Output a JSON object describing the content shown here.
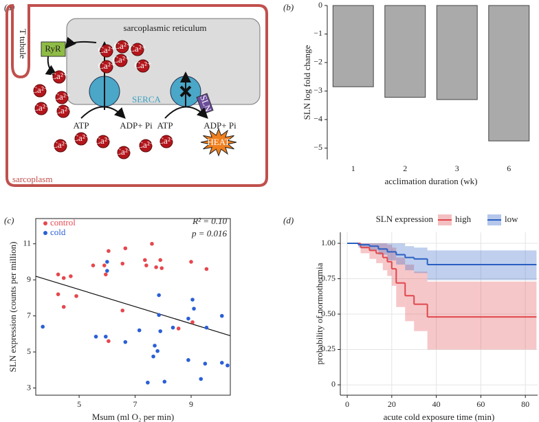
{
  "diagram": {
    "label": "(a)",
    "t_tubule": "T tubule",
    "sr": "sarcoplasmic reticulum",
    "ryr": "RyR",
    "serca": "SERCA",
    "sln": "SLN",
    "ion": "Ca²⁺",
    "atp": "ATP",
    "adp": "ADP+ Pi",
    "heat": "HEAT",
    "sarcoplasm": "sarcoplasm"
  },
  "chart_data": [
    {
      "type": "bar",
      "label": "(b)",
      "categories": [
        "1",
        "2",
        "3",
        "6"
      ],
      "values": [
        -2.85,
        -3.22,
        -3.3,
        -4.75
      ],
      "color": "#aaaaaa",
      "xlabel": "acclimation duration (wk)",
      "ylabel": "SLN log fold change",
      "ylim": [
        -5.4,
        0
      ],
      "yticks": [
        0,
        {
          "value": -1,
          "label": "−1"
        },
        {
          "value": -2,
          "label": "−2"
        },
        {
          "value": -3,
          "label": "−3"
        },
        {
          "value": -4,
          "label": "−4"
        },
        {
          "value": -5,
          "label": "−5"
        }
      ]
    },
    {
      "type": "scatter",
      "label": "(c)",
      "xlabel": "Msum (ml O₂ per min)",
      "ylabel": "SLN expression (counts per million)",
      "annotations": [
        "R² = 0.10",
        "p = 0.016"
      ],
      "xlim": [
        3.45,
        10.4
      ],
      "xticks": [
        5,
        7,
        9
      ],
      "ylim": [
        2.6,
        12.4
      ],
      "yticks": [
        3,
        5,
        7,
        9,
        11
      ],
      "series": [
        {
          "name": "control",
          "color": "#e5484e",
          "x": [
            4.25,
            4.25,
            4.45,
            4.45,
            4.7,
            4.9,
            5.5,
            5.9,
            5.95,
            6.05,
            6.05,
            6.55,
            6.65,
            6.55,
            7.35,
            7.4,
            7.6,
            7.75,
            7.9,
            7.95,
            8.55,
            9.0,
            9.05,
            9.55
          ],
          "values": [
            9.3,
            8.2,
            9.1,
            7.5,
            9.2,
            8.1,
            9.8,
            9.8,
            9.3,
            10.6,
            5.6,
            9.9,
            10.75,
            7.3,
            10.1,
            9.8,
            11.0,
            9.7,
            10.1,
            9.65,
            6.3,
            10.0,
            6.65,
            9.6
          ]
        },
        {
          "name": "cold",
          "color": "#2b5fd6",
          "x": [
            3.7,
            5.6,
            5.95,
            6.0,
            6.0,
            6.65,
            7.15,
            7.45,
            7.65,
            7.7,
            7.8,
            7.85,
            7.85,
            7.9,
            8.05,
            8.35,
            8.9,
            8.9,
            9.05,
            9.1,
            9.55,
            9.5,
            9.35,
            10.1,
            10.1,
            10.3
          ],
          "values": [
            6.4,
            5.85,
            5.85,
            10.0,
            9.5,
            5.55,
            6.2,
            3.3,
            4.75,
            5.35,
            5.05,
            8.15,
            7.05,
            6.15,
            3.35,
            6.35,
            6.85,
            4.55,
            7.9,
            7.4,
            6.35,
            4.35,
            3.5,
            7.0,
            4.4,
            4.25
          ]
        }
      ],
      "fit_line": {
        "x": [
          3.45,
          10.4
        ],
        "values": [
          9.2,
          5.9
        ]
      }
    },
    {
      "type": "survival",
      "label": "(d)",
      "legend_title": "SLN expression",
      "xlabel": "acute cold exposure time (min)",
      "ylabel": "probability of normothermia",
      "xlim": [
        -3.1,
        85.5
      ],
      "xticks": [
        0,
        20,
        40,
        60,
        80
      ],
      "ylim": [
        -0.073,
        1.078
      ],
      "yticks": [
        0,
        0.25,
        {
          "value": 0.5,
          "label": "0.50"
        },
        0.75,
        {
          "value": 1,
          "label": "1.00"
        }
      ],
      "series": [
        {
          "name": "high",
          "color": "#e0474c",
          "x": [
            0,
            6,
            10,
            13,
            16,
            18,
            20,
            22,
            26,
            30,
            36,
            85
          ],
          "values": [
            1,
            0.97,
            0.95,
            0.93,
            0.9,
            0.87,
            0.82,
            0.72,
            0.63,
            0.57,
            0.48,
            0.48
          ],
          "lower": [
            1,
            0.93,
            0.89,
            0.86,
            0.81,
            0.77,
            0.7,
            0.55,
            0.45,
            0.38,
            0.25,
            0.25
          ],
          "upper": [
            1,
            1,
            1,
            1,
            1,
            0.99,
            0.97,
            0.9,
            0.85,
            0.8,
            0.73,
            0.73
          ]
        },
        {
          "name": "low",
          "color": "#2a5fc2",
          "x": [
            0,
            5,
            10,
            14,
            18,
            22,
            26,
            30,
            36,
            85
          ],
          "values": [
            1,
            0.99,
            0.98,
            0.96,
            0.94,
            0.92,
            0.9,
            0.89,
            0.85,
            0.85
          ],
          "lower": [
            1,
            0.97,
            0.95,
            0.92,
            0.88,
            0.85,
            0.81,
            0.79,
            0.74,
            0.74
          ],
          "upper": [
            1,
            1,
            1,
            1,
            1,
            1,
            0.98,
            0.97,
            0.95,
            0.95
          ]
        }
      ]
    }
  ]
}
